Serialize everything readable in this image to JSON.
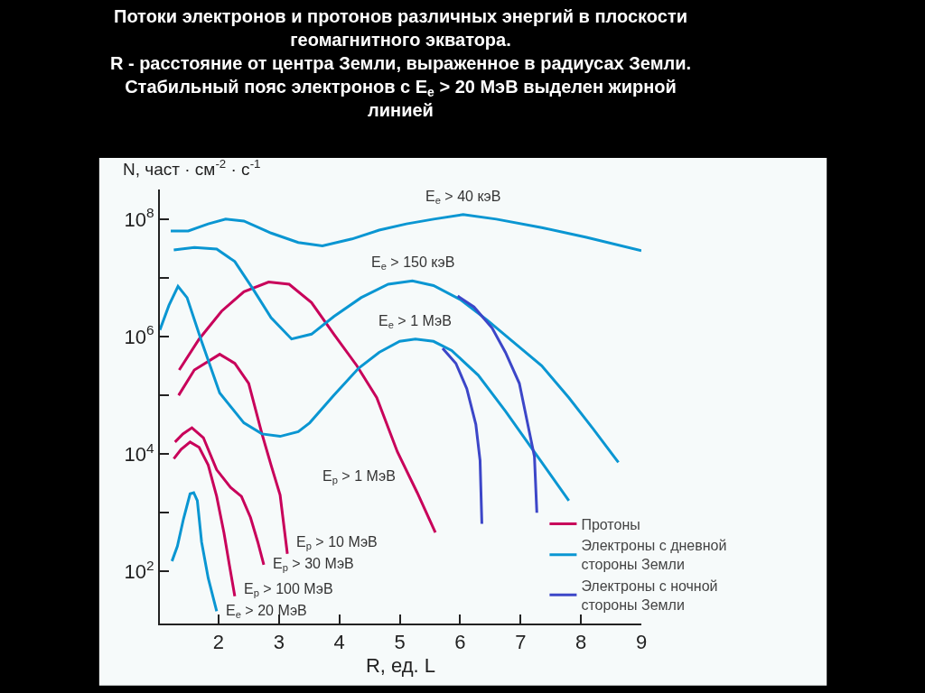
{
  "chart_data": {
    "type": "line",
    "title": "Потоки электронов и протонов различных энергий в плоскости\nгеомагнитного экватора.\nR - расстояние от центра Земли, выраженное в радиусах Земли.\nСтабильный пояс электронов с E$_{e}$ > 20 МэВ выделен жирной\nлинией",
    "xlabel": "R, ед. L",
    "ylabel": "N, част · см$^{-2}$ · с$^{-1}$",
    "log": "y",
    "xlim": [
      1.03,
      9
    ],
    "xticks": [
      2,
      3,
      4,
      5,
      6,
      7,
      8,
      9
    ],
    "ylim": [
      13,
      320000000.0
    ],
    "yticks": [
      {
        "value": 100,
        "label": "10$^{2}$"
      },
      {
        "value": 1000,
        "label": null
      },
      {
        "value": 10000,
        "label": "10$^{4}$"
      },
      {
        "value": 100000,
        "label": null
      },
      {
        "value": 1000000,
        "label": "10$^{6}$"
      },
      {
        "value": 10000000,
        "label": null
      },
      {
        "value": 100000000,
        "label": "10$^{8}$"
      }
    ],
    "grid": false,
    "legend": "bottom right",
    "marker": "none",
    "line_style": "solid",
    "series": [
      {
        "name": "Протоны",
        "color": "#c8005a",
        "x": [
          1.35,
          1.68,
          2.05,
          2.42,
          2.83,
          3.17,
          3.54,
          3.91,
          4.29,
          4.62,
          4.96,
          5.29,
          5.59
        ],
        "values": [
          270000.0,
          910000.0,
          2700000.0,
          5800000.0,
          8500000.0,
          7800000.0,
          3800000.0,
          1100000.0,
          320000.0,
          91000.0,
          11000.0,
          2200.0,
          460
        ]
      },
      {
        "color": "#c8005a",
        "x": [
          1.34,
          1.6,
          2.02,
          2.27,
          2.5,
          2.72,
          2.87,
          3.02,
          3.14
        ],
        "values": [
          100000.0,
          270000.0,
          500000.0,
          350000.0,
          160000.0,
          22000.0,
          6500.0,
          2000.0,
          200
        ]
      },
      {
        "color": "#c8005a",
        "x": [
          1.28,
          1.41,
          1.56,
          1.75,
          1.97,
          2.2,
          2.38,
          2.53,
          2.65,
          2.75
        ],
        "values": [
          16000.0,
          22000.0,
          28000.0,
          19000.0,
          5400.0,
          2700.0,
          1900.0,
          830,
          320,
          130
        ]
      },
      {
        "color": "#c8005a",
        "x": [
          1.26,
          1.38,
          1.53,
          1.68,
          1.83,
          1.97,
          2.09,
          2.18,
          2.27
        ],
        "values": [
          8300.0,
          12000.0,
          16000.0,
          13000.0,
          6500.0,
          1900.0,
          460,
          130,
          38
        ]
      },
      {
        "name": "Электроны с дневной\nстороны Земли",
        "color": "#0a96d2",
        "x": [
          1.21,
          1.5,
          1.83,
          2.12,
          2.42,
          2.87,
          3.32,
          3.72,
          4.21,
          4.66,
          5.11,
          5.56,
          6.05,
          6.6,
          7.35,
          8.09,
          9.0
        ],
        "values": [
          63000000.0,
          63000000.0,
          83000000.0,
          100000000.0,
          93000000.0,
          58000000.0,
          40000000.0,
          35000000.0,
          46000000.0,
          65000000.0,
          83000000.0,
          100000000.0,
          120000000.0,
          100000000.0,
          72000000.0,
          49000000.0,
          29000000.0
        ]
      },
      {
        "color": "#0a96d2",
        "x": [
          1.26,
          1.6,
          1.97,
          2.27,
          2.57,
          2.87,
          3.21,
          3.54,
          3.91,
          4.36,
          4.81,
          5.21,
          5.56,
          6.0,
          6.45,
          6.9,
          7.35,
          7.8,
          8.2,
          8.62
        ],
        "values": [
          30000000.0,
          33000000.0,
          31000000.0,
          19000000.0,
          6500000.0,
          2100000.0,
          910000.0,
          1100000.0,
          2200000.0,
          4600000.0,
          7800000.0,
          8900000.0,
          7400000.0,
          4300000.0,
          1900000.0,
          780000.0,
          320000.0,
          91000.0,
          27000.0,
          7200.0
        ]
      },
      {
        "color": "#0a96d2",
        "x": [
          1.03,
          1.18,
          1.33,
          1.48,
          1.72,
          2.02,
          2.42,
          2.72,
          3.02,
          3.32,
          3.51,
          3.91,
          4.32,
          4.66,
          5.0,
          5.26,
          5.56,
          5.86,
          6.3,
          6.75,
          7.2,
          7.8
        ],
        "values": [
          1300000.0,
          3400000.0,
          7200000.0,
          4600000.0,
          830000.0,
          110000.0,
          34000.0,
          22000.0,
          20000.0,
          24000.0,
          34000.0,
          100000.0,
          290000.0,
          540000.0,
          830000.0,
          910000.0,
          830000.0,
          580000.0,
          220000.0,
          54000.0,
          12000.0,
          1600.0
        ]
      },
      {
        "color": "#0a96d2",
        "x": [
          1.23,
          1.32,
          1.42,
          1.53,
          1.59,
          1.65,
          1.72,
          1.83,
          1.97
        ],
        "values": [
          150,
          270,
          780,
          2100.0,
          2200.0,
          1600.0,
          320,
          77,
          21
        ]
      },
      {
        "name": "Электроны с ночной\nстороны Земли",
        "color": "#3c46c8",
        "x": [
          5.96,
          6.23,
          6.53,
          6.75,
          6.98,
          7.12,
          7.23,
          7.27
        ],
        "values": [
          4900000.0,
          3200000.0,
          1400000.0,
          540000.0,
          160000.0,
          32000.0,
          9100.0,
          1000.0
        ]
      },
      {
        "color": "#3c46c8",
        "x": [
          5.71,
          5.93,
          6.11,
          6.26,
          6.33,
          6.36
        ],
        "values": [
          630000.0,
          350000.0,
          130000.0,
          32000.0,
          7800.0,
          650
        ]
      }
    ],
    "annotations": [
      {
        "text": "E$_{e}$ > 40 кэВ",
        "x": 6.05,
        "y": 120000000.0
      },
      {
        "text": "E$_{e}$ > 150 кэВ",
        "x": 5.21,
        "y": 8900000.0
      },
      {
        "text": "E$_{e}$ > 1 МэВ",
        "x": 5.26,
        "y": 910000.0
      },
      {
        "text": "E$_{p}$ > 1 МэВ",
        "x": 5.29,
        "y": 2200.0
      },
      {
        "text": "E$_{p}$ > 10 МэВ",
        "x": 3.14,
        "y": 200
      },
      {
        "text": "E$_{p}$ > 30 МэВ",
        "x": 2.75,
        "y": 130
      },
      {
        "text": "E$_{p}$ > 100 МэВ",
        "x": 2.27,
        "y": 38
      },
      {
        "text": "E$_{e}$ > 20 МэВ",
        "x": 1.97,
        "y": 21
      }
    ]
  }
}
